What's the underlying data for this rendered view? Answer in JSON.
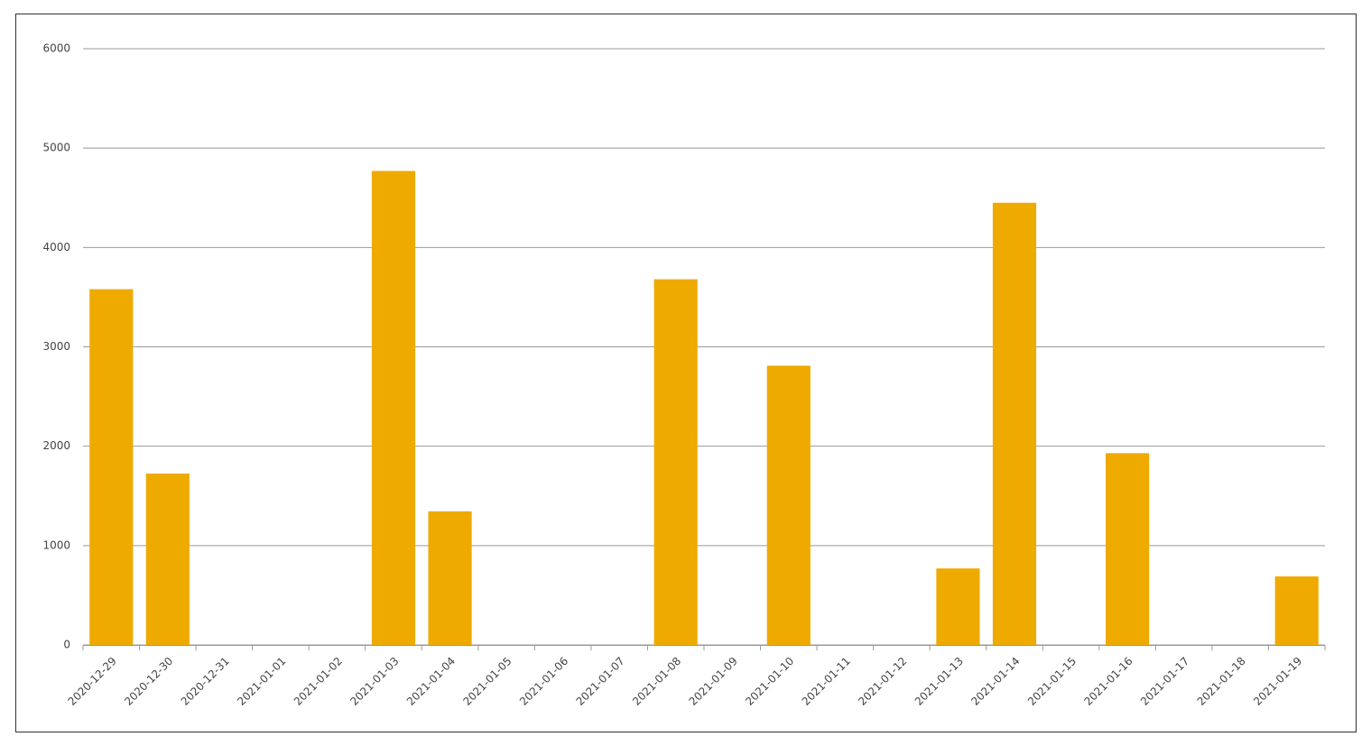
{
  "chart_data": {
    "type": "bar",
    "categories": [
      "2020-12-29",
      "2020-12-30",
      "2020-12-31",
      "2021-01-01",
      "2021-01-02",
      "2021-01-03",
      "2021-01-04",
      "2021-01-05",
      "2021-01-06",
      "2021-01-07",
      "2021-01-08",
      "2021-01-09",
      "2021-01-10",
      "2021-01-11",
      "2021-01-12",
      "2021-01-13",
      "2021-01-14",
      "2021-01-15",
      "2021-01-16",
      "2021-01-17",
      "2021-01-18",
      "2021-01-19"
    ],
    "values": [
      3580,
      1725,
      0,
      0,
      0,
      4770,
      1345,
      0,
      0,
      0,
      3680,
      0,
      2810,
      0,
      0,
      770,
      4450,
      0,
      1930,
      0,
      0,
      690
    ],
    "color": "#efaa00",
    "ylim": [
      0,
      6000
    ],
    "yticks": [
      0,
      1000,
      2000,
      3000,
      4000,
      5000,
      6000
    ],
    "grid": true
  }
}
